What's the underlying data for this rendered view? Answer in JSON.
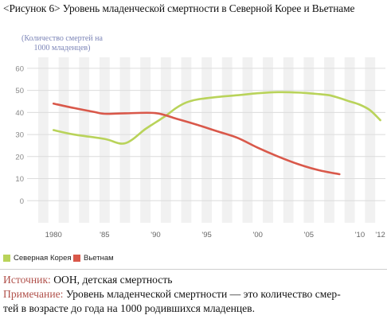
{
  "figure": {
    "title": "<Рисунок 6> Уровень младенческой смертности в Северной Корее и Вьетнаме"
  },
  "chart_data": {
    "type": "line",
    "ylabel": "(Количество смертей на 1000 младенцев)",
    "ylim": [
      -10,
      65
    ],
    "yticks": [
      0,
      10,
      20,
      30,
      40,
      50,
      60
    ],
    "xlim": [
      1978.5,
      2012.5
    ],
    "xtick_values": [
      1980,
      1985,
      1990,
      1995,
      2000,
      2005,
      2010,
      2012
    ],
    "xtick_labels": [
      "1980",
      "'85",
      "'90",
      "'95",
      "'00",
      "'05",
      "'10",
      "'12"
    ],
    "grid": "horizontal",
    "background": "alternating vertical year bands",
    "legend_position": "bottom-left",
    "series": [
      {
        "name": "Северная Корея",
        "color": "#b9d35a",
        "x": [
          1980,
          1982,
          1985,
          1987,
          1989,
          1990,
          1991,
          1992,
          1993,
          1994,
          1996,
          1998,
          2000,
          2002,
          2004,
          2006,
          2007,
          2008,
          2009,
          2010,
          2011,
          2012
        ],
        "y": [
          32,
          30,
          28,
          26,
          32.5,
          35.5,
          38.5,
          42,
          44.5,
          45.8,
          47,
          47.8,
          48.7,
          49.2,
          49,
          48.3,
          47.8,
          46.5,
          45,
          43.5,
          41,
          36.5
        ]
      },
      {
        "name": "Вьетнам",
        "color": "#d9584a",
        "x": [
          1980,
          1982,
          1984,
          1985,
          1987,
          1990,
          1992,
          1994,
          1996,
          1998,
          2000,
          2002,
          2004,
          2006,
          2008
        ],
        "y": [
          44,
          42,
          40.2,
          39.4,
          39.6,
          39.7,
          37.2,
          34.5,
          31.5,
          28.5,
          24,
          20,
          16.5,
          13.8,
          12
        ]
      }
    ]
  },
  "legend": [
    {
      "label": "Северная Корея",
      "color": "#b9d35a"
    },
    {
      "label": "Вьетнам",
      "color": "#d9584a"
    }
  ],
  "notes": {
    "source_key": "Источник:",
    "source_text": "ООН, детская смертность",
    "note_key": "Примечание:",
    "note_text": "Уровень младенческой смертности — это количество смер-",
    "note_text_2": "тей в возрасте до года на 1000 родившихся младенцев."
  }
}
